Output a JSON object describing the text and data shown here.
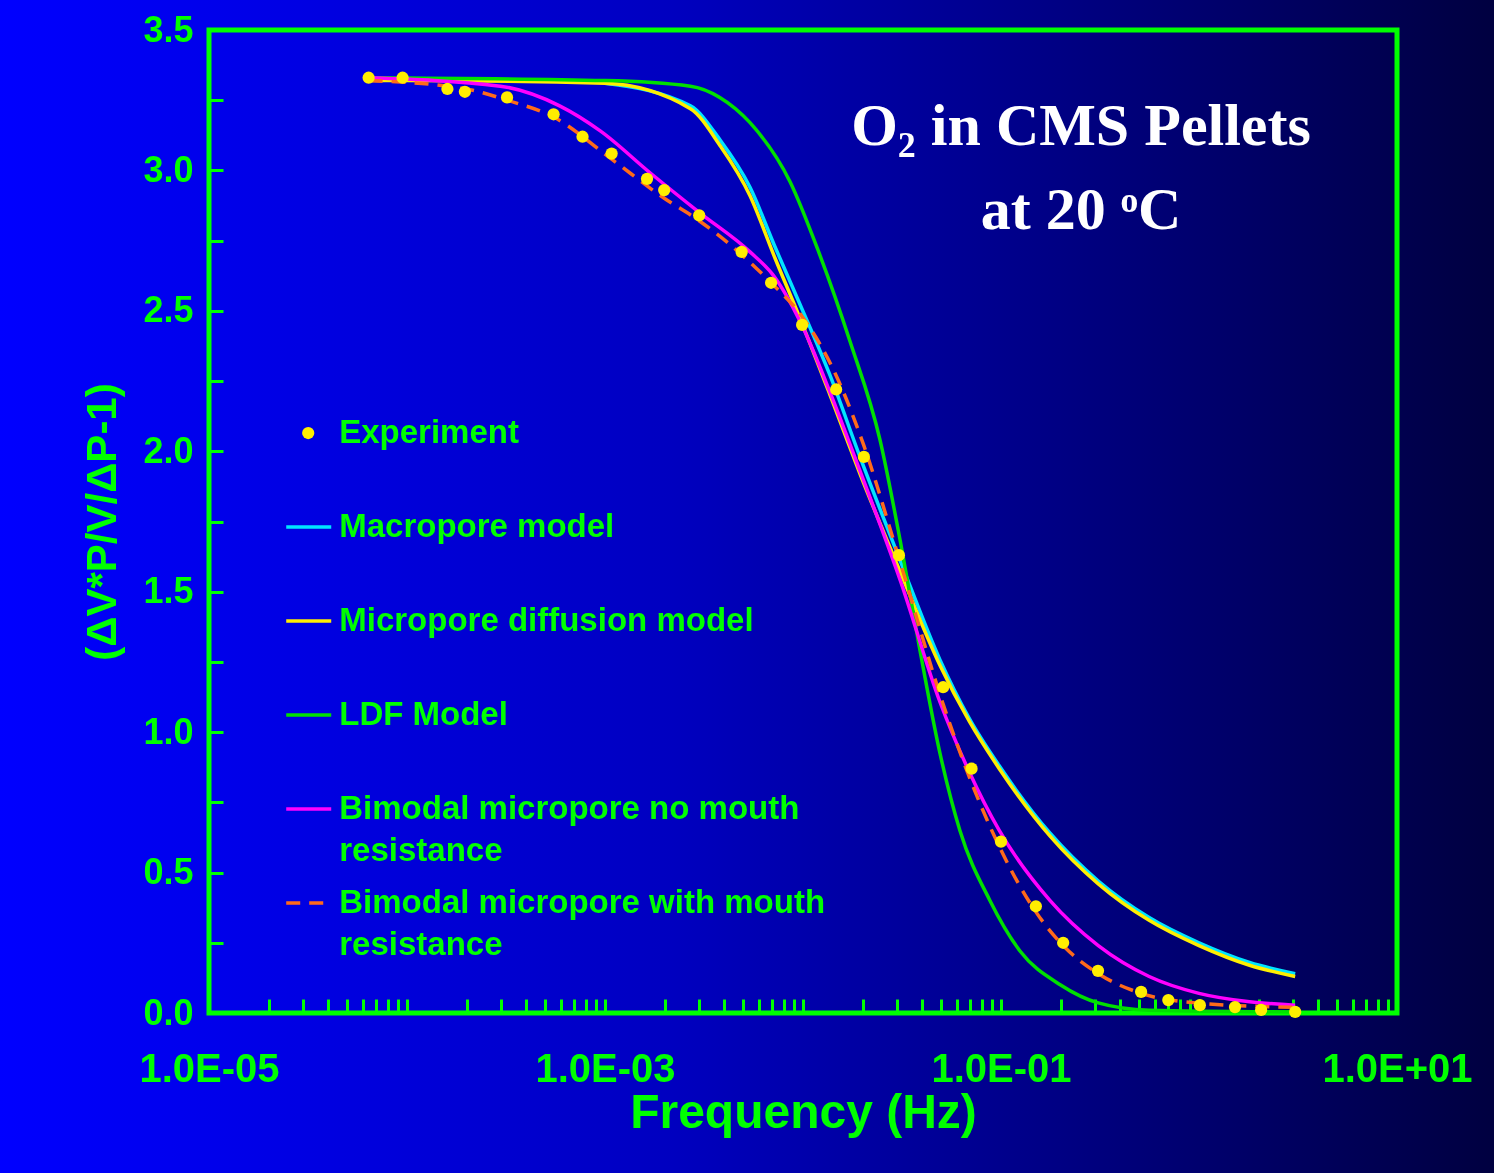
{
  "chart_data": {
    "type": "line",
    "title": "O₂ in CMS Pellets at 20 ᵒC",
    "xlabel": "Frequency (Hz)",
    "ylabel": "(ΔV*P/V/ΔP-1)",
    "log": "x",
    "grid": false,
    "legend": "left",
    "xlim": [
      1e-05,
      10
    ],
    "ylim": [
      0,
      3.5
    ],
    "xticks": [
      {
        "value": 1e-05,
        "label": "1.0E-05"
      },
      {
        "value": 2e-05,
        "label": null
      },
      {
        "value": 3e-05,
        "label": null
      },
      {
        "value": 4e-05,
        "label": null
      },
      {
        "value": 5e-05,
        "label": null
      },
      {
        "value": 6e-05,
        "label": null
      },
      {
        "value": 7e-05,
        "label": null
      },
      {
        "value": 8e-05,
        "label": null
      },
      {
        "value": 9e-05,
        "label": null
      },
      {
        "value": 0.0001,
        "label": null
      },
      {
        "value": 0.0002,
        "label": null
      },
      {
        "value": 0.0003,
        "label": null
      },
      {
        "value": 0.0004,
        "label": null
      },
      {
        "value": 0.0005,
        "label": null
      },
      {
        "value": 0.0006,
        "label": null
      },
      {
        "value": 0.0007,
        "label": null
      },
      {
        "value": 0.0008,
        "label": null
      },
      {
        "value": 0.0009,
        "label": null
      },
      {
        "value": 0.001,
        "label": "1.0E-03"
      },
      {
        "value": 0.002,
        "label": null
      },
      {
        "value": 0.003,
        "label": null
      },
      {
        "value": 0.004,
        "label": null
      },
      {
        "value": 0.005,
        "label": null
      },
      {
        "value": 0.006,
        "label": null
      },
      {
        "value": 0.007,
        "label": null
      },
      {
        "value": 0.008,
        "label": null
      },
      {
        "value": 0.009,
        "label": null
      },
      {
        "value": 0.01,
        "label": null
      },
      {
        "value": 0.02,
        "label": null
      },
      {
        "value": 0.03,
        "label": null
      },
      {
        "value": 0.04,
        "label": null
      },
      {
        "value": 0.05,
        "label": null
      },
      {
        "value": 0.06,
        "label": null
      },
      {
        "value": 0.07,
        "label": null
      },
      {
        "value": 0.08,
        "label": null
      },
      {
        "value": 0.09,
        "label": null
      },
      {
        "value": 0.1,
        "label": "1.0E-01"
      },
      {
        "value": 0.2,
        "label": null
      },
      {
        "value": 0.3,
        "label": null
      },
      {
        "value": 0.4,
        "label": null
      },
      {
        "value": 0.5,
        "label": null
      },
      {
        "value": 0.6,
        "label": null
      },
      {
        "value": 0.7,
        "label": null
      },
      {
        "value": 0.8,
        "label": null
      },
      {
        "value": 0.9,
        "label": null
      },
      {
        "value": 1,
        "label": null
      },
      {
        "value": 2,
        "label": null
      },
      {
        "value": 3,
        "label": null
      },
      {
        "value": 4,
        "label": null
      },
      {
        "value": 5,
        "label": null
      },
      {
        "value": 6,
        "label": null
      },
      {
        "value": 7,
        "label": null
      },
      {
        "value": 8,
        "label": null
      },
      {
        "value": 9,
        "label": null
      },
      {
        "value": 10,
        "label": "1.0E+01"
      }
    ],
    "yticks": [
      {
        "value": 0,
        "label": "0.0"
      },
      {
        "value": 0.25,
        "label": null
      },
      {
        "value": 0.5,
        "label": "0.5"
      },
      {
        "value": 0.75,
        "label": null
      },
      {
        "value": 1,
        "label": "1.0"
      },
      {
        "value": 1.25,
        "label": null
      },
      {
        "value": 1.5,
        "label": "1.5"
      },
      {
        "value": 1.75,
        "label": null
      },
      {
        "value": 2,
        "label": "2.0"
      },
      {
        "value": 2.25,
        "label": null
      },
      {
        "value": 2.5,
        "label": "2.5"
      },
      {
        "value": 2.75,
        "label": null
      },
      {
        "value": 3,
        "label": "3.0"
      },
      {
        "value": 3.25,
        "label": null
      },
      {
        "value": 3.5,
        "label": "3.5"
      }
    ],
    "series": [
      {
        "name": "Experiment",
        "type": "scatter",
        "marker": "circle",
        "color": "#ffee00",
        "x": [
          6.4e-05,
          9.5e-05,
          0.00016,
          0.000196,
          0.00032,
          0.00055,
          0.00077,
          0.00108,
          0.00163,
          0.00199,
          0.00299,
          0.0049,
          0.0069,
          0.0099,
          0.0147,
          0.0203,
          0.0305,
          0.051,
          0.071,
          0.1,
          0.15,
          0.206,
          0.309,
          0.51,
          0.7,
          1.01,
          1.52,
          2.06,
          3.06
        ],
        "values": [
          3.33,
          3.33,
          3.29,
          3.28,
          3.26,
          3.2,
          3.12,
          3.06,
          2.97,
          2.93,
          2.84,
          2.71,
          2.6,
          2.45,
          2.22,
          1.98,
          1.63,
          1.16,
          0.87,
          0.61,
          0.38,
          0.25,
          0.15,
          0.075,
          0.046,
          0.028,
          0.021,
          0.011,
          0.004
        ]
      },
      {
        "name": "Macropore model",
        "type": "line",
        "line_style": "solid",
        "color": "#00e5ff",
        "x": [
          0.001,
          0.0027,
          0.0038,
          0.0054,
          0.0072,
          0.0097,
          0.0137,
          0.0194,
          0.031,
          0.049,
          0.069,
          0.098,
          0.177,
          0.31,
          0.56,
          1.0,
          1.8,
          3.06
        ],
        "values": [
          3.31,
          3.23,
          3.11,
          2.94,
          2.73,
          2.52,
          2.27,
          1.98,
          1.61,
          1.26,
          1.05,
          0.88,
          0.64,
          0.47,
          0.34,
          0.25,
          0.18,
          0.14
        ]
      },
      {
        "name": "Micropore diffusion model",
        "type": "line",
        "line_style": "solid",
        "color": "#ffee00",
        "x": [
          6.4e-05,
          0.0001,
          0.001,
          0.0027,
          0.0038,
          0.0054,
          0.0072,
          0.0097,
          0.0137,
          0.0194,
          0.031,
          0.049,
          0.069,
          0.098,
          0.177,
          0.31,
          0.56,
          1.0,
          1.8,
          3.06
        ],
        "values": [
          3.32,
          3.32,
          3.31,
          3.22,
          3.09,
          2.91,
          2.69,
          2.47,
          2.2,
          1.92,
          1.57,
          1.24,
          1.04,
          0.87,
          0.63,
          0.46,
          0.33,
          0.24,
          0.17,
          0.13
        ]
      },
      {
        "name": "LDF Model",
        "type": "line",
        "line_style": "solid",
        "color": "#00e000",
        "x": [
          6.4e-05,
          0.001,
          0.0027,
          0.0038,
          0.0054,
          0.0086,
          0.012,
          0.0173,
          0.0245,
          0.031,
          0.039,
          0.049,
          0.062,
          0.088,
          0.125,
          0.2,
          0.31,
          0.56,
          3.06
        ],
        "values": [
          3.33,
          3.32,
          3.3,
          3.26,
          3.17,
          2.96,
          2.71,
          2.39,
          2.04,
          1.68,
          1.29,
          0.93,
          0.65,
          0.4,
          0.22,
          0.1,
          0.036,
          0.01,
          0.004
        ]
      },
      {
        "name": "Bimodal micropore no mouth resistance",
        "type": "line",
        "line_style": "solid",
        "color": "#ff00ff",
        "x": [
          6.4e-05,
          0.000296,
          0.00059,
          0.00095,
          0.0017,
          0.003,
          0.0054,
          0.0072,
          0.0097,
          0.0137,
          0.0194,
          0.031,
          0.049,
          0.069,
          0.098,
          0.177,
          0.31,
          0.56,
          1.0,
          1.8,
          3.06
        ],
        "values": [
          3.33,
          3.3,
          3.23,
          3.14,
          2.99,
          2.85,
          2.71,
          2.62,
          2.46,
          2.21,
          1.93,
          1.54,
          1.11,
          0.86,
          0.65,
          0.4,
          0.24,
          0.13,
          0.07,
          0.04,
          0.028
        ]
      },
      {
        "name": "Bimodal micropore with mouth resistance",
        "type": "line",
        "line_style": "dashed",
        "color": "#ff6a1a",
        "x": [
          6.4e-05,
          0.0002,
          0.00032,
          0.00055,
          0.00108,
          0.002,
          0.003,
          0.0049,
          0.0069,
          0.0099,
          0.0147,
          0.0203,
          0.0305,
          0.051,
          0.071,
          0.1,
          0.15,
          0.206,
          0.31,
          0.51,
          1.0,
          3.06
        ],
        "values": [
          3.32,
          3.29,
          3.25,
          3.19,
          3.04,
          2.9,
          2.82,
          2.7,
          2.6,
          2.48,
          2.27,
          2.02,
          1.62,
          1.1,
          0.82,
          0.58,
          0.36,
          0.24,
          0.14,
          0.07,
          0.035,
          0.02
        ]
      }
    ]
  }
}
